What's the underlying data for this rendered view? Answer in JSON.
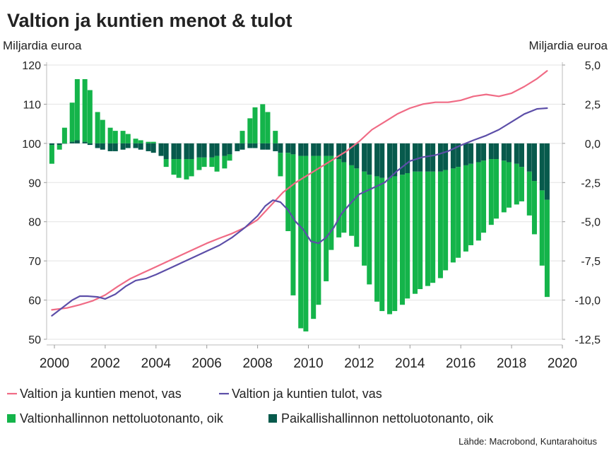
{
  "chart_data": {
    "type": "bar+line",
    "title": "Valtion ja kuntien menot & tulot",
    "left_axis_label": "Miljardia euroa",
    "right_axis_label": "Miljardia euroa",
    "left_ylim": [
      50,
      120
    ],
    "left_ticks": [
      "50",
      "60",
      "70",
      "80",
      "90",
      "100",
      "110",
      "120"
    ],
    "right_ylim": [
      -12.5,
      5.0
    ],
    "right_ticks": [
      "-12,5",
      "-10,0",
      "-7,5",
      "-5,0",
      "-2,5",
      "0,0",
      "2,5",
      "5,0"
    ],
    "xlim": [
      2000,
      2020
    ],
    "x_ticks": [
      "2000",
      "2002",
      "2004",
      "2006",
      "2008",
      "2010",
      "2012",
      "2014",
      "2016",
      "2018",
      "2020"
    ],
    "grid": true,
    "legend_position": "bottom",
    "colors": {
      "expenditure": "#f06b85",
      "revenue": "#5c4ea8",
      "central_bar": "#14b44a",
      "local_bar": "#075a4c",
      "grid": "#e3e3e3"
    },
    "series": [
      {
        "name": "Valtion ja kuntien menot, vas",
        "axis": "left",
        "type": "line",
        "x": [
          1999.9,
          2000.5,
          2001,
          2001.5,
          2002,
          2002.5,
          2003,
          2003.5,
          2004,
          2004.5,
          2005,
          2005.5,
          2006,
          2006.5,
          2007,
          2007.5,
          2008,
          2008.5,
          2009,
          2009.5,
          2010,
          2010.5,
          2011,
          2011.5,
          2012,
          2012.5,
          2013,
          2013.5,
          2014,
          2014.5,
          2015,
          2015.5,
          2016,
          2016.5,
          2017,
          2017.5,
          2018,
          2018.5,
          2019,
          2019.4
        ],
        "values": [
          57.5,
          58.0,
          58.8,
          59.8,
          61.3,
          63.5,
          65.5,
          67.0,
          68.5,
          70.0,
          71.5,
          73.0,
          74.5,
          75.8,
          77.0,
          78.5,
          80.5,
          84.0,
          87.5,
          90.0,
          92.0,
          94.0,
          96.0,
          98.0,
          100.5,
          103.5,
          105.5,
          107.5,
          109.0,
          110.0,
          110.5,
          110.5,
          111.0,
          112.0,
          112.5,
          112.0,
          112.8,
          114.5,
          116.5,
          118.5
        ]
      },
      {
        "name": "Valtion ja kuntien tulot, vas",
        "axis": "left",
        "type": "line",
        "x": [
          1999.9,
          2000.3,
          2000.7,
          2001,
          2001.3,
          2001.7,
          2002,
          2002.4,
          2002.8,
          2003.2,
          2003.6,
          2004,
          2004.5,
          2005,
          2005.5,
          2006,
          2006.5,
          2007,
          2007.5,
          2008,
          2008.3,
          2008.6,
          2008.9,
          2009.2,
          2009.5,
          2009.8,
          2010.1,
          2010.4,
          2010.7,
          2011,
          2011.3,
          2011.7,
          2012,
          2012.5,
          2013,
          2013.5,
          2014,
          2014.5,
          2015,
          2015.5,
          2016,
          2016.5,
          2017,
          2017.5,
          2018,
          2018.5,
          2019,
          2019.4
        ],
        "values": [
          56.0,
          58.0,
          60.0,
          61.0,
          61.0,
          60.8,
          60.3,
          61.5,
          63.5,
          65.0,
          65.5,
          66.5,
          68.0,
          69.5,
          71.0,
          72.5,
          74.0,
          76.0,
          78.5,
          81.5,
          84.0,
          85.5,
          85.0,
          83.0,
          80.0,
          78.0,
          75.0,
          74.5,
          76.0,
          78.5,
          82.0,
          85.0,
          87.0,
          88.5,
          90.0,
          93.0,
          95.5,
          96.5,
          97.0,
          98.0,
          99.5,
          100.8,
          102.0,
          103.5,
          105.5,
          107.5,
          108.8,
          109.0
        ]
      },
      {
        "name": "Valtionhallinnon nettoluotonanto, oik",
        "axis": "right",
        "type": "bar",
        "x": [
          1999.9,
          2000.2,
          2000.4,
          2000.7,
          2000.9,
          2001.2,
          2001.4,
          2001.7,
          2001.9,
          2002.2,
          2002.4,
          2002.7,
          2002.9,
          2003.2,
          2003.4,
          2003.7,
          2003.9,
          2004.2,
          2004.4,
          2004.7,
          2004.9,
          2005.2,
          2005.4,
          2005.7,
          2005.9,
          2006.2,
          2006.4,
          2006.7,
          2006.9,
          2007.2,
          2007.4,
          2007.7,
          2007.9,
          2008.2,
          2008.4,
          2008.7,
          2008.9,
          2009.2,
          2009.4,
          2009.7,
          2009.9,
          2010.2,
          2010.4,
          2010.7,
          2010.9,
          2011.2,
          2011.4,
          2011.7,
          2011.9,
          2012.2,
          2012.4,
          2012.7,
          2012.9,
          2013.2,
          2013.4,
          2013.7,
          2013.9,
          2014.2,
          2014.4,
          2014.7,
          2014.9,
          2015.2,
          2015.4,
          2015.7,
          2015.9,
          2016.2,
          2016.4,
          2016.7,
          2016.9,
          2017.2,
          2017.4,
          2017.7,
          2017.9,
          2018.2,
          2018.4,
          2018.7,
          2018.9,
          2019.2,
          2019.4
        ],
        "values": [
          -1.2,
          -0.3,
          1.0,
          2.5,
          3.9,
          4.0,
          3.4,
          2.0,
          1.5,
          1.0,
          0.8,
          0.8,
          0.6,
          0.3,
          0.2,
          0.1,
          0.1,
          0.0,
          -0.5,
          -1.0,
          -1.2,
          -1.3,
          -1.1,
          -0.8,
          -0.6,
          -0.6,
          -1.0,
          -0.8,
          -0.4,
          0.0,
          0.8,
          1.6,
          2.3,
          2.5,
          2.0,
          0.8,
          -1.5,
          -5.0,
          -9.0,
          -11.0,
          -11.2,
          -10.4,
          -9.5,
          -8.0,
          -6.0,
          -5.0,
          -4.5,
          -4.5,
          -5.0,
          -6.0,
          -7.0,
          -8.0,
          -8.5,
          -8.7,
          -8.6,
          -8.3,
          -8.0,
          -7.8,
          -7.5,
          -7.3,
          -7.1,
          -6.8,
          -6.4,
          -6.0,
          -5.8,
          -5.5,
          -5.2,
          -5.0,
          -4.6,
          -4.2,
          -3.8,
          -3.3,
          -2.9,
          -2.6,
          -2.2,
          -2.8,
          -3.4,
          -4.8,
          -6.2
        ]
      },
      {
        "name": "Paikallishallinnon nettoluotonanto, oik",
        "axis": "right",
        "type": "bar",
        "x": [
          1999.9,
          2000.2,
          2000.4,
          2000.7,
          2000.9,
          2001.2,
          2001.4,
          2001.7,
          2001.9,
          2002.2,
          2002.4,
          2002.7,
          2002.9,
          2003.2,
          2003.4,
          2003.7,
          2003.9,
          2004.2,
          2004.4,
          2004.7,
          2004.9,
          2005.2,
          2005.4,
          2005.7,
          2005.9,
          2006.2,
          2006.4,
          2006.7,
          2006.9,
          2007.2,
          2007.4,
          2007.7,
          2007.9,
          2008.2,
          2008.4,
          2008.7,
          2008.9,
          2009.2,
          2009.4,
          2009.7,
          2009.9,
          2010.2,
          2010.4,
          2010.7,
          2010.9,
          2011.2,
          2011.4,
          2011.7,
          2011.9,
          2012.2,
          2012.4,
          2012.7,
          2012.9,
          2013.2,
          2013.4,
          2013.7,
          2013.9,
          2014.2,
          2014.4,
          2014.7,
          2014.9,
          2015.2,
          2015.4,
          2015.7,
          2015.9,
          2016.2,
          2016.4,
          2016.7,
          2016.9,
          2017.2,
          2017.4,
          2017.7,
          2017.9,
          2018.2,
          2018.4,
          2018.7,
          2018.9,
          2019.2,
          2019.4
        ],
        "values": [
          -0.1,
          -0.1,
          0.0,
          0.1,
          0.2,
          0.1,
          -0.1,
          -0.3,
          -0.4,
          -0.5,
          -0.5,
          -0.4,
          -0.3,
          -0.3,
          -0.4,
          -0.5,
          -0.6,
          -0.8,
          -1.0,
          -1.0,
          -1.0,
          -1.0,
          -1.0,
          -0.9,
          -0.9,
          -0.9,
          -0.8,
          -0.8,
          -0.7,
          -0.5,
          -0.4,
          -0.3,
          -0.3,
          -0.4,
          -0.4,
          -0.5,
          -0.6,
          -0.6,
          -0.7,
          -0.8,
          -0.8,
          -0.8,
          -0.8,
          -0.8,
          -0.8,
          -1.0,
          -1.2,
          -1.4,
          -1.6,
          -1.8,
          -2.0,
          -2.1,
          -2.2,
          -2.2,
          -2.1,
          -2.0,
          -1.9,
          -1.8,
          -1.8,
          -1.8,
          -1.8,
          -1.8,
          -1.7,
          -1.6,
          -1.5,
          -1.4,
          -1.3,
          -1.2,
          -1.1,
          -1.0,
          -1.0,
          -1.1,
          -1.2,
          -1.3,
          -1.5,
          -1.8,
          -2.4,
          -3.0,
          -3.6
        ]
      }
    ],
    "legend": [
      {
        "label": "Valtion ja kuntien menot, vas",
        "kind": "line",
        "color": "#f06b85"
      },
      {
        "label": "Valtion ja kuntien tulot, vas",
        "kind": "line",
        "color": "#5c4ea8"
      },
      {
        "label": "Valtionhallinnon nettoluotonanto, oik",
        "kind": "box",
        "color": "#14b44a"
      },
      {
        "label": "Paikallishallinnon nettoluotonanto, oik",
        "kind": "box",
        "color": "#075a4c"
      }
    ],
    "source": "Lähde: Macrobond, Kuntarahoitus"
  }
}
